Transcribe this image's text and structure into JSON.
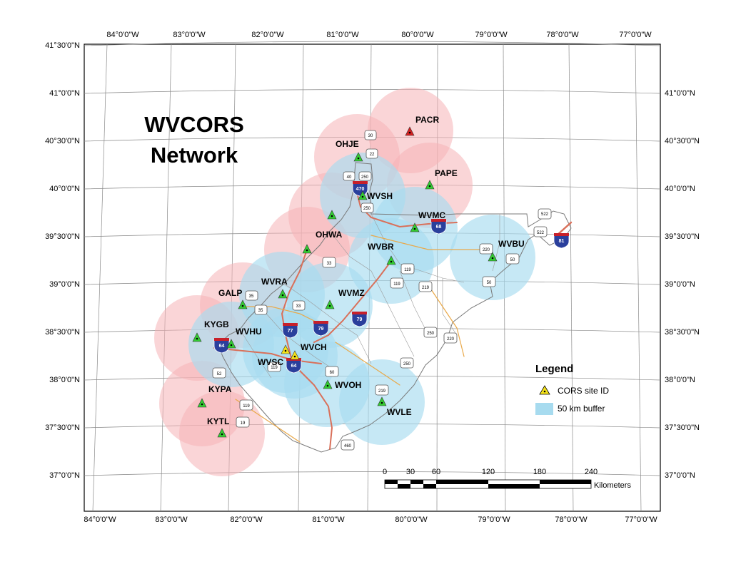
{
  "title": {
    "line1": "WVCORS",
    "line2": "Network"
  },
  "axes": {
    "left_lat": [
      "41°30'0\"N",
      "41°0'0\"N",
      "40°30'0\"N",
      "40°0'0\"N",
      "39°30'0\"N",
      "39°0'0\"N",
      "38°30'0\"N",
      "38°0'0\"N",
      "37°30'0\"N",
      "37°0'0\"N"
    ],
    "right_lat": [
      "41°0'0\"N",
      "40°30'0\"N",
      "40°0'0\"N",
      "39°30'0\"N",
      "39°0'0\"N",
      "38°30'0\"N",
      "38°0'0\"N",
      "37°30'0\"N",
      "37°0'0\"N"
    ],
    "top_lon": [
      "84°0'0\"W",
      "83°0'0\"W",
      "82°0'0\"W",
      "81°0'0\"W",
      "80°0'0\"W",
      "79°0'0\"W",
      "78°0'0\"W",
      "77°0'0\"W"
    ],
    "bottom_lon": [
      "84°0'0\"W",
      "83°0'0\"W",
      "82°0'0\"W",
      "81°0'0\"W",
      "80°0'0\"W",
      "79°0'0\"W",
      "78°0'0\"W",
      "77°0'0\"W"
    ]
  },
  "sites": [
    {
      "id": "PACR",
      "color": "#d42020"
    },
    {
      "id": "OHJE",
      "color": "#33cc33"
    },
    {
      "id": "PAPE",
      "color": "#33cc33"
    },
    {
      "id": "WVSH",
      "color": "#33cc33"
    },
    {
      "id": "WVMC",
      "color": "#33cc33"
    },
    {
      "id": "OHWA",
      "color": "#33cc33"
    },
    {
      "id": "WVBR",
      "color": "#33cc33"
    },
    {
      "id": "WVBU",
      "color": "#33cc33"
    },
    {
      "id": "WVRA",
      "color": "#33cc33"
    },
    {
      "id": "GALP",
      "color": "#33cc33"
    },
    {
      "id": "WVMZ",
      "color": "#33cc33"
    },
    {
      "id": "KYGB",
      "color": "#33cc33"
    },
    {
      "id": "WVHU",
      "color": "#33cc33"
    },
    {
      "id": "WVCH",
      "color": "#f5e31a"
    },
    {
      "id": "WVSC",
      "color": "#f5e31a"
    },
    {
      "id": "WVOH",
      "color": "#33cc33"
    },
    {
      "id": "KYPA",
      "color": "#33cc33"
    },
    {
      "id": "WVLE",
      "color": "#33cc33"
    },
    {
      "id": "KYTL",
      "color": "#33cc33"
    }
  ],
  "legend": {
    "title": "Legend",
    "items": [
      {
        "label": "CORS site ID"
      },
      {
        "label": "50 km buffer"
      }
    ]
  },
  "scale": {
    "ticks": [
      "0",
      "30",
      "60",
      "120",
      "180",
      "240"
    ],
    "unit": "Kilometers"
  },
  "us_routes": [
    "30",
    "22",
    "250",
    "40",
    "250",
    "522",
    "522",
    "220",
    "50",
    "33",
    "50",
    "35",
    "119",
    "119",
    "219",
    "33",
    "250",
    "220",
    "119",
    "35",
    "60",
    "219",
    "52",
    "119",
    "460",
    "250",
    "19"
  ],
  "interstates": [
    "470",
    "68",
    "81",
    "79",
    "77",
    "79",
    "64",
    "64"
  ],
  "colors": {
    "buffer_pink": "#f6b3b6",
    "buffer_blue": "#a7dbef",
    "wv_outline": "#7a7a7a",
    "road_red": "#d9705a",
    "road_orange": "#e9a94a",
    "interstate_blue": "#2a3f9c",
    "interstate_red": "#c8202a"
  }
}
